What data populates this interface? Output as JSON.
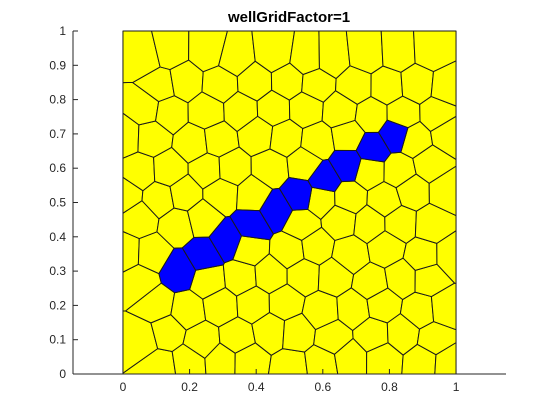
{
  "chart_data": {
    "type": "polygon-mesh",
    "title": "wellGridFactor=1",
    "xlabel": "",
    "ylabel": "",
    "xlim": [
      -0.15,
      1.15
    ],
    "ylim": [
      0,
      1
    ],
    "domain": {
      "x": [
        0,
        1
      ],
      "y": [
        0,
        1
      ]
    },
    "xticks": [
      0,
      0.2,
      0.4,
      0.6,
      0.8,
      1
    ],
    "yticks": [
      0,
      0.1,
      0.2,
      0.3,
      0.4,
      0.5,
      0.6,
      0.7,
      0.8,
      0.9,
      1
    ],
    "xtick_labels": [
      "0",
      "0.2",
      "0.4",
      "0.6",
      "0.8",
      "1"
    ],
    "ytick_labels": [
      "0",
      "0.1",
      "0.2",
      "0.3",
      "0.4",
      "0.5",
      "0.6",
      "0.7",
      "0.8",
      "0.9",
      "1"
    ],
    "cell_color": "#ffff00",
    "well_color": "#0000ff",
    "edge_color": "#1a1a1a",
    "grid": false,
    "well_line": {
      "start": [
        0.17,
        0.3
      ],
      "end": [
        0.82,
        0.7
      ]
    },
    "well_cell_count": 10
  }
}
